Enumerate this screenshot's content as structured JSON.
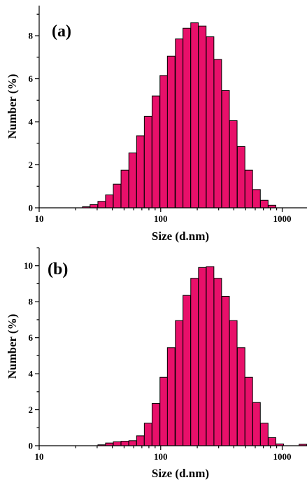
{
  "chart_data": [
    {
      "type": "bar",
      "panel_label": "(a)",
      "xlabel": "Size (d.nm)",
      "ylabel": "Number (%)",
      "x_scale": "log",
      "xlim": [
        10,
        1600
      ],
      "ylim": [
        0,
        9.4
      ],
      "x_ticks": [
        "10",
        "100",
        "1000"
      ],
      "y_ticks": [
        "0",
        "2",
        "4",
        "6",
        "8"
      ],
      "bar_color": "#E8106A",
      "bars": [
        {
          "x": 24.4,
          "y": 0.05
        },
        {
          "x": 28.2,
          "y": 0.15
        },
        {
          "x": 32.7,
          "y": 0.3
        },
        {
          "x": 37.8,
          "y": 0.6
        },
        {
          "x": 43.8,
          "y": 1.1
        },
        {
          "x": 50.7,
          "y": 1.75
        },
        {
          "x": 58.8,
          "y": 2.55
        },
        {
          "x": 68.1,
          "y": 3.35
        },
        {
          "x": 78.8,
          "y": 4.25
        },
        {
          "x": 91.3,
          "y": 5.2
        },
        {
          "x": 106,
          "y": 6.15
        },
        {
          "x": 122,
          "y": 7.05
        },
        {
          "x": 142,
          "y": 7.85
        },
        {
          "x": 164,
          "y": 8.35
        },
        {
          "x": 190,
          "y": 8.6
        },
        {
          "x": 220,
          "y": 8.45
        },
        {
          "x": 255,
          "y": 7.95
        },
        {
          "x": 295,
          "y": 6.9
        },
        {
          "x": 342,
          "y": 5.45
        },
        {
          "x": 396,
          "y": 4.05
        },
        {
          "x": 459,
          "y": 2.85
        },
        {
          "x": 531,
          "y": 1.75
        },
        {
          "x": 615,
          "y": 0.85
        },
        {
          "x": 712,
          "y": 0.35
        },
        {
          "x": 825,
          "y": 0.12
        }
      ]
    },
    {
      "type": "bar",
      "panel_label": "(b)",
      "xlabel": "Size (d.nm)",
      "ylabel": "Number (%)",
      "x_scale": "log",
      "xlim": [
        10,
        1600
      ],
      "ylim": [
        0,
        11
      ],
      "x_ticks": [
        "10",
        "100",
        "1000"
      ],
      "y_ticks": [
        "0",
        "2",
        "4",
        "6",
        "8",
        "10"
      ],
      "bar_color": "#E8106A",
      "bars": [
        {
          "x": 32.7,
          "y": 0.05
        },
        {
          "x": 37.8,
          "y": 0.15
        },
        {
          "x": 43.8,
          "y": 0.22
        },
        {
          "x": 50.7,
          "y": 0.25
        },
        {
          "x": 58.8,
          "y": 0.28
        },
        {
          "x": 68.1,
          "y": 0.55
        },
        {
          "x": 78.8,
          "y": 1.25
        },
        {
          "x": 91.3,
          "y": 2.35
        },
        {
          "x": 106,
          "y": 3.8
        },
        {
          "x": 122,
          "y": 5.45
        },
        {
          "x": 142,
          "y": 6.95
        },
        {
          "x": 164,
          "y": 8.35
        },
        {
          "x": 190,
          "y": 9.3
        },
        {
          "x": 220,
          "y": 9.9
        },
        {
          "x": 255,
          "y": 9.95
        },
        {
          "x": 295,
          "y": 9.3
        },
        {
          "x": 342,
          "y": 8.3
        },
        {
          "x": 396,
          "y": 6.95
        },
        {
          "x": 459,
          "y": 5.45
        },
        {
          "x": 531,
          "y": 3.8
        },
        {
          "x": 615,
          "y": 2.4
        },
        {
          "x": 712,
          "y": 1.25
        },
        {
          "x": 825,
          "y": 0.45
        },
        {
          "x": 955,
          "y": 0.1
        },
        {
          "x": 1480,
          "y": 0.08
        }
      ]
    }
  ]
}
